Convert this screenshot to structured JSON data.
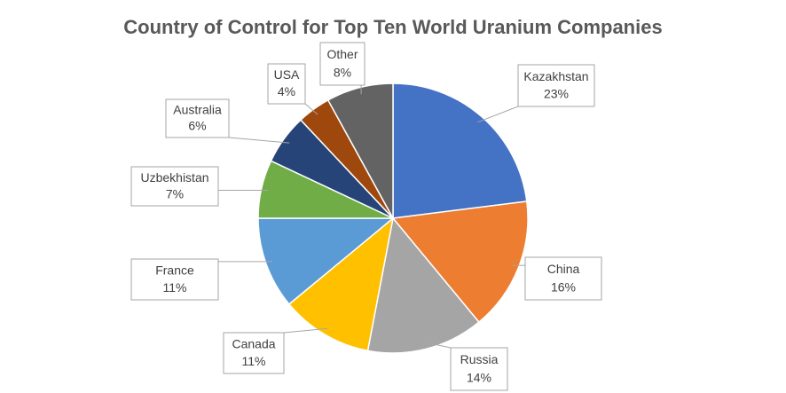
{
  "chart_data": {
    "type": "pie",
    "title": "Country of Control for Top Ten World Uranium Companies",
    "categories": [
      "Kazakhstan",
      "China",
      "Russia",
      "Canada",
      "France",
      "Uzbekhistan",
      "Australia",
      "USA",
      "Other"
    ],
    "values": [
      23,
      16,
      14,
      11,
      11,
      7,
      6,
      4,
      8
    ],
    "value_labels": [
      "23%",
      "16%",
      "14%",
      "11%",
      "11%",
      "7%",
      "6%",
      "4%",
      "8%"
    ],
    "colors": [
      "#4472c4",
      "#ed7d31",
      "#a5a5a5",
      "#ffc000",
      "#5b9bd5",
      "#70ad47",
      "#264478",
      "#9e480e",
      "#636363"
    ]
  }
}
